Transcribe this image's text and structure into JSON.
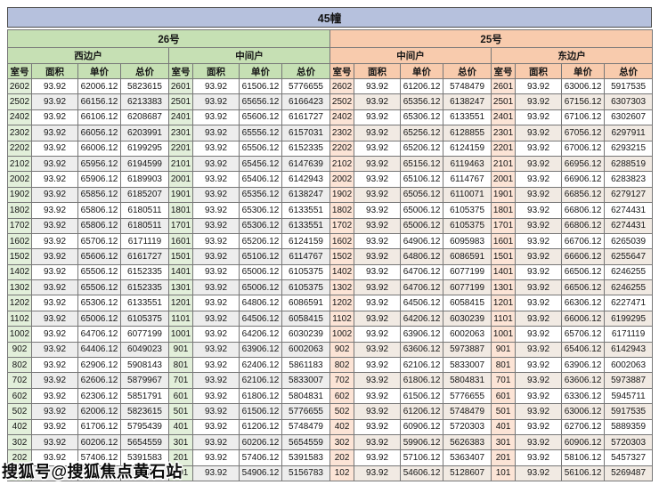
{
  "header": {
    "title": "45幢"
  },
  "watermark": {
    "text": "搜狐号@搜狐焦点黄石站"
  },
  "colors": {
    "title_bar": "#b6c1dd",
    "green_header": "#c6e0b4",
    "green_room": "#e2efda",
    "orange_header": "#f8cbad",
    "orange_room": "#fce4d6",
    "stripe_left": "#ededed",
    "stripe_right": "#f1eae3"
  },
  "chart_data": {
    "type": "table",
    "title": "45幢",
    "columns": [
      "室号",
      "面积",
      "单价",
      "总价"
    ],
    "sections": [
      {
        "label": "26号",
        "theme": "green",
        "groups": [
          {
            "label": "西边户",
            "rows": [
              [
                "2602",
                "93.92",
                "62006.12",
                "5823615"
              ],
              [
                "2502",
                "93.92",
                "66156.12",
                "6213383"
              ],
              [
                "2402",
                "93.92",
                "66106.12",
                "6208687"
              ],
              [
                "2302",
                "93.92",
                "66056.12",
                "6203991"
              ],
              [
                "2202",
                "93.92",
                "66006.12",
                "6199295"
              ],
              [
                "2102",
                "93.92",
                "65956.12",
                "6194599"
              ],
              [
                "2002",
                "93.92",
                "65906.12",
                "6189903"
              ],
              [
                "1902",
                "93.92",
                "65856.12",
                "6185207"
              ],
              [
                "1802",
                "93.92",
                "65806.12",
                "6180511"
              ],
              [
                "1702",
                "93.92",
                "65806.12",
                "6180511"
              ],
              [
                "1602",
                "93.92",
                "65706.12",
                "6171119"
              ],
              [
                "1502",
                "93.92",
                "65606.12",
                "6161727"
              ],
              [
                "1402",
                "93.92",
                "65506.12",
                "6152335"
              ],
              [
                "1302",
                "93.92",
                "65506.12",
                "6152335"
              ],
              [
                "1202",
                "93.92",
                "65306.12",
                "6133551"
              ],
              [
                "1102",
                "93.92",
                "65006.12",
                "6105375"
              ],
              [
                "1002",
                "93.92",
                "64706.12",
                "6077199"
              ],
              [
                "902",
                "93.92",
                "64406.12",
                "6049023"
              ],
              [
                "802",
                "93.92",
                "62906.12",
                "5908143"
              ],
              [
                "702",
                "93.92",
                "62606.12",
                "5879967"
              ],
              [
                "602",
                "93.92",
                "62306.12",
                "5851791"
              ],
              [
                "502",
                "93.92",
                "62006.12",
                "5823615"
              ],
              [
                "402",
                "93.92",
                "61706.12",
                "5795439"
              ],
              [
                "302",
                "93.92",
                "60206.12",
                "5654559"
              ],
              [
                "202",
                "93.92",
                "57406.12",
                "5391583"
              ],
              [
                "",
                "",
                "",
                "743"
              ]
            ]
          },
          {
            "label": "中间户",
            "rows": [
              [
                "2601",
                "93.92",
                "61506.12",
                "5776655"
              ],
              [
                "2501",
                "93.92",
                "65656.12",
                "6166423"
              ],
              [
                "2401",
                "93.92",
                "65606.12",
                "6161727"
              ],
              [
                "2301",
                "93.92",
                "65556.12",
                "6157031"
              ],
              [
                "2201",
                "93.92",
                "65506.12",
                "6152335"
              ],
              [
                "2101",
                "93.92",
                "65456.12",
                "6147639"
              ],
              [
                "2001",
                "93.92",
                "65406.12",
                "6142943"
              ],
              [
                "1901",
                "93.92",
                "65356.12",
                "6138247"
              ],
              [
                "1801",
                "93.92",
                "65306.12",
                "6133551"
              ],
              [
                "1701",
                "93.92",
                "65306.12",
                "6133551"
              ],
              [
                "1601",
                "93.92",
                "65206.12",
                "6124159"
              ],
              [
                "1501",
                "93.92",
                "65106.12",
                "6114767"
              ],
              [
                "1401",
                "93.92",
                "65006.12",
                "6105375"
              ],
              [
                "1301",
                "93.92",
                "65006.12",
                "6105375"
              ],
              [
                "1201",
                "93.92",
                "64806.12",
                "6086591"
              ],
              [
                "1101",
                "93.92",
                "64506.12",
                "6058415"
              ],
              [
                "1001",
                "93.92",
                "64206.12",
                "6030239"
              ],
              [
                "901",
                "93.92",
                "63906.12",
                "6002063"
              ],
              [
                "801",
                "93.92",
                "62406.12",
                "5861183"
              ],
              [
                "701",
                "93.92",
                "62106.12",
                "5833007"
              ],
              [
                "601",
                "93.92",
                "61806.12",
                "5804831"
              ],
              [
                "501",
                "93.92",
                "61506.12",
                "5776655"
              ],
              [
                "401",
                "93.92",
                "61206.12",
                "5748479"
              ],
              [
                "301",
                "93.92",
                "60206.12",
                "5654559"
              ],
              [
                "201",
                "93.92",
                "57406.12",
                "5391583"
              ],
              [
                "101",
                "93.92",
                "54906.12",
                "5156783"
              ]
            ]
          }
        ]
      },
      {
        "label": "25号",
        "theme": "orange",
        "groups": [
          {
            "label": "中间户",
            "rows": [
              [
                "2602",
                "93.92",
                "61206.12",
                "5748479"
              ],
              [
                "2502",
                "93.92",
                "65356.12",
                "6138247"
              ],
              [
                "2402",
                "93.92",
                "65306.12",
                "6133551"
              ],
              [
                "2302",
                "93.92",
                "65256.12",
                "6128855"
              ],
              [
                "2202",
                "93.92",
                "65206.12",
                "6124159"
              ],
              [
                "2102",
                "93.92",
                "65156.12",
                "6119463"
              ],
              [
                "2002",
                "93.92",
                "65106.12",
                "6114767"
              ],
              [
                "1902",
                "93.92",
                "65056.12",
                "6110071"
              ],
              [
                "1802",
                "93.92",
                "65006.12",
                "6105375"
              ],
              [
                "1702",
                "93.92",
                "65006.12",
                "6105375"
              ],
              [
                "1602",
                "93.92",
                "64906.12",
                "6095983"
              ],
              [
                "1502",
                "93.92",
                "64806.12",
                "6086591"
              ],
              [
                "1402",
                "93.92",
                "64706.12",
                "6077199"
              ],
              [
                "1302",
                "93.92",
                "64706.12",
                "6077199"
              ],
              [
                "1202",
                "93.92",
                "64506.12",
                "6058415"
              ],
              [
                "1102",
                "93.92",
                "64206.12",
                "6030239"
              ],
              [
                "1002",
                "93.92",
                "63906.12",
                "6002063"
              ],
              [
                "902",
                "93.92",
                "63606.12",
                "5973887"
              ],
              [
                "802",
                "93.92",
                "62106.12",
                "5833007"
              ],
              [
                "702",
                "93.92",
                "61806.12",
                "5804831"
              ],
              [
                "602",
                "93.92",
                "61506.12",
                "5776655"
              ],
              [
                "502",
                "93.92",
                "61206.12",
                "5748479"
              ],
              [
                "402",
                "93.92",
                "60906.12",
                "5720303"
              ],
              [
                "302",
                "93.92",
                "59906.12",
                "5626383"
              ],
              [
                "202",
                "93.92",
                "57106.12",
                "5363407"
              ],
              [
                "102",
                "93.92",
                "54606.12",
                "5128607"
              ]
            ]
          },
          {
            "label": "东边户",
            "rows": [
              [
                "2601",
                "93.92",
                "63006.12",
                "5917535"
              ],
              [
                "2501",
                "93.92",
                "67156.12",
                "6307303"
              ],
              [
                "2401",
                "93.92",
                "67106.12",
                "6302607"
              ],
              [
                "2301",
                "93.92",
                "67056.12",
                "6297911"
              ],
              [
                "2201",
                "93.92",
                "67006.12",
                "6293215"
              ],
              [
                "2101",
                "93.92",
                "66956.12",
                "6288519"
              ],
              [
                "2001",
                "93.92",
                "66906.12",
                "6283823"
              ],
              [
                "1901",
                "93.92",
                "66856.12",
                "6279127"
              ],
              [
                "1801",
                "93.92",
                "66806.12",
                "6274431"
              ],
              [
                "1701",
                "93.92",
                "66806.12",
                "6274431"
              ],
              [
                "1601",
                "93.92",
                "66706.12",
                "6265039"
              ],
              [
                "1501",
                "93.92",
                "66606.12",
                "6255647"
              ],
              [
                "1401",
                "93.92",
                "66506.12",
                "6246255"
              ],
              [
                "1301",
                "93.92",
                "66506.12",
                "6246255"
              ],
              [
                "1201",
                "93.92",
                "66306.12",
                "6227471"
              ],
              [
                "1101",
                "93.92",
                "66006.12",
                "6199295"
              ],
              [
                "1001",
                "93.92",
                "65706.12",
                "6171119"
              ],
              [
                "901",
                "93.92",
                "65406.12",
                "6142943"
              ],
              [
                "801",
                "93.92",
                "63906.12",
                "6002063"
              ],
              [
                "701",
                "93.92",
                "63606.12",
                "5973887"
              ],
              [
                "601",
                "93.92",
                "63306.12",
                "5945711"
              ],
              [
                "501",
                "93.92",
                "63006.12",
                "5917535"
              ],
              [
                "401",
                "93.92",
                "62706.12",
                "5889359"
              ],
              [
                "301",
                "93.92",
                "60906.12",
                "5720303"
              ],
              [
                "201",
                "93.92",
                "58106.12",
                "5457327"
              ],
              [
                "101",
                "93.92",
                "56106.12",
                "5269487"
              ]
            ]
          }
        ]
      }
    ]
  }
}
